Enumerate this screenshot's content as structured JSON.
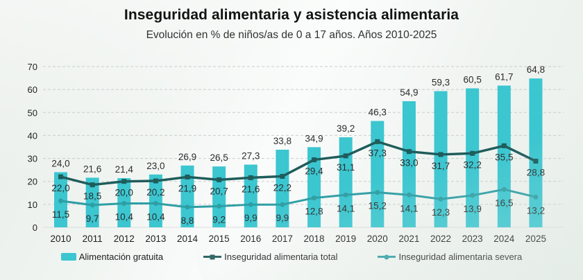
{
  "title": "Inseguridad alimentaria y asistencia alimentaria",
  "subtitle": "Evolución en % de niños/as de 0 a 17 años. Años 2010-2025",
  "colors": {
    "bar": "#3BC6D0",
    "total_line": "#1F5C5B",
    "severe_line": "#2E9EA4",
    "grid": "#C8CDCC",
    "baseline": "#D8DDDC",
    "value_label": "#2B2B2B",
    "axis_label": "#222222"
  },
  "legend": [
    {
      "label": "Alimentación gratuita",
      "swatch": "bar"
    },
    {
      "label": "Inseguridad alimentaria total",
      "swatch": "line-square"
    },
    {
      "label": "Inseguridad alimentaria severa",
      "swatch": "line-dot"
    }
  ],
  "chart_data": {
    "type": "bar",
    "subtype": "combo-bar-line",
    "title": "Inseguridad alimentaria y asistencia alimentaria",
    "subtitle": "Evolución en % de niños/as de 0 a 17 años. Años 2010-2025",
    "categories": [
      "2010",
      "2011",
      "2012",
      "2013",
      "2014",
      "2015",
      "2016",
      "2017",
      "2018",
      "2019",
      "2020",
      "2021",
      "2022",
      "2023",
      "2024",
      "2025"
    ],
    "series": [
      {
        "name": "Alimentación gratuita",
        "render": "bar",
        "values": [
          24.0,
          21.6,
          21.4,
          23.0,
          26.9,
          26.5,
          27.3,
          33.8,
          34.9,
          39.2,
          46.3,
          54.9,
          59.3,
          60.5,
          61.7,
          64.8
        ]
      },
      {
        "name": "Inseguridad alimentaria total",
        "render": "line",
        "values": [
          22.0,
          18.5,
          20.0,
          20.2,
          21.9,
          20.7,
          21.6,
          22.2,
          29.4,
          31.1,
          37.3,
          33.0,
          31.7,
          32.2,
          35.5,
          28.8
        ]
      },
      {
        "name": "Inseguridad alimentaria severa",
        "render": "line",
        "values": [
          11.5,
          9.7,
          10.4,
          10.4,
          8.8,
          9.2,
          9.9,
          9.9,
          12.8,
          14.1,
          15.2,
          14.1,
          12.3,
          13.9,
          16.5,
          13.2
        ]
      }
    ],
    "xlabel": "",
    "ylabel": "",
    "ylim": [
      0,
      70
    ],
    "yticks": [
      0,
      10,
      20,
      30,
      40,
      50,
      60,
      70
    ],
    "grid": "horizontal-dashed",
    "legend_position": "bottom",
    "value_labels": "decimal-comma"
  }
}
